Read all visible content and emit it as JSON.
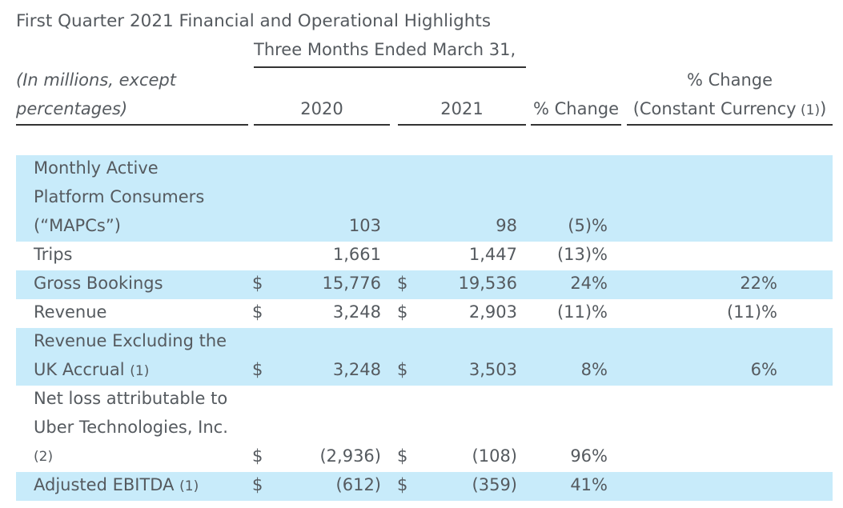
{
  "title": "First Quarter 2021 Financial and Operational Highlights",
  "header": {
    "period_label": "Three Months Ended March 31,",
    "units_line1": "(In millions, except",
    "units_line2": "percentages)",
    "col_2020": "2020",
    "col_2021": "2021",
    "col_change": "% Change",
    "col_cc_line1": "% Change",
    "col_cc_line2": "(Constant Currency",
    "col_cc_note": "(1)",
    "col_cc_close": ")"
  },
  "rows": [
    {
      "label_lines": [
        "Monthly Active",
        "Platform Consumers",
        "(“MAPCs”)"
      ],
      "note": "",
      "cur_2020": "",
      "v2020": "103",
      "cur_2021": "",
      "v2021": "98",
      "change": "(5)%",
      "cc_change": ""
    },
    {
      "label_lines": [
        "Trips"
      ],
      "note": "",
      "cur_2020": "",
      "v2020": "1,661",
      "cur_2021": "",
      "v2021": "1,447",
      "change": "(13)%",
      "cc_change": ""
    },
    {
      "label_lines": [
        "Gross Bookings"
      ],
      "note": "",
      "cur_2020": "$",
      "v2020": "15,776",
      "cur_2021": "$",
      "v2021": "19,536",
      "change": "24%",
      "cc_change": "22%"
    },
    {
      "label_lines": [
        "Revenue"
      ],
      "note": "",
      "cur_2020": "$",
      "v2020": "3,248",
      "cur_2021": "$",
      "v2021": "2,903",
      "change": "(11)%",
      "cc_change": "(11)%"
    },
    {
      "label_lines": [
        "Revenue Excluding the",
        "UK Accrual"
      ],
      "note": "(1)",
      "cur_2020": "$",
      "v2020": "3,248",
      "cur_2021": "$",
      "v2021": "3,503",
      "change": "8%",
      "cc_change": "6%"
    },
    {
      "label_lines": [
        "Net loss attributable to",
        "Uber Technologies, Inc.",
        ""
      ],
      "note": "(2)",
      "cur_2020": "$",
      "v2020": "(2,936)",
      "cur_2021": "$",
      "v2021": "(108)",
      "change": "96%",
      "cc_change": ""
    },
    {
      "label_lines": [
        "Adjusted EBITDA"
      ],
      "note": "(1)",
      "cur_2020": "$",
      "v2020": "(612)",
      "cur_2021": "$",
      "v2021": "(359)",
      "change": "41%",
      "cc_change": ""
    }
  ]
}
